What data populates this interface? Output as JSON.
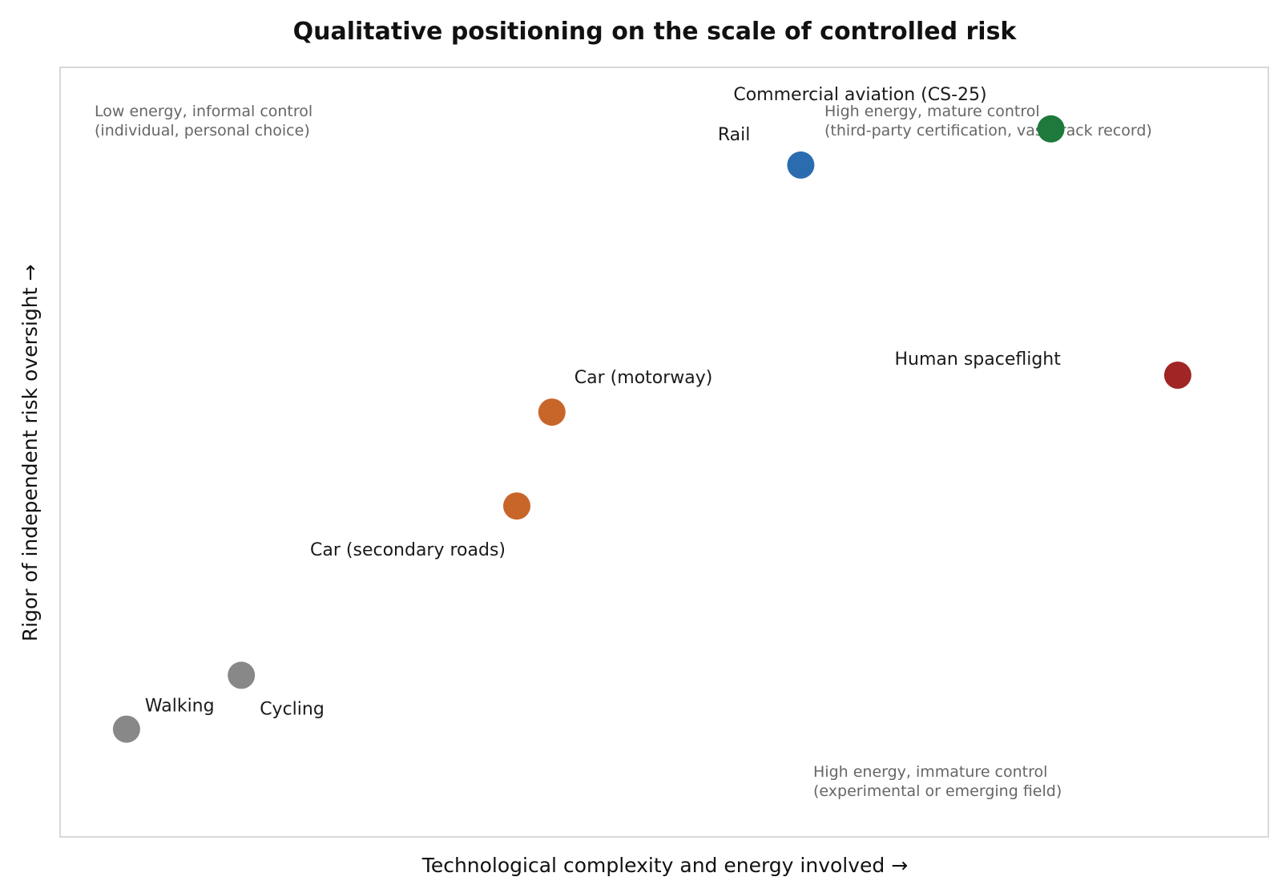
{
  "chart_data": {
    "type": "scatter",
    "title": "Qualitative positioning on the scale of controlled risk",
    "xlabel": "Technological complexity and energy involved  →",
    "ylabel": "Rigor of independent risk oversight  →",
    "xlim": [
      0,
      10
    ],
    "ylim": [
      0,
      10
    ],
    "grid": false,
    "points": [
      {
        "label": "Walking",
        "x": 0.55,
        "y": 1.4,
        "color": "#888888"
      },
      {
        "label": "Cycling",
        "x": 1.5,
        "y": 2.1,
        "color": "#888888"
      },
      {
        "label": "Car (secondary roads)",
        "x": 3.78,
        "y": 4.3,
        "color": "#c8662a"
      },
      {
        "label": "Car (motorway)",
        "x": 4.07,
        "y": 5.52,
        "color": "#c8662a"
      },
      {
        "label": "Rail",
        "x": 6.13,
        "y": 8.73,
        "color": "#2b6cb0"
      },
      {
        "label": "Commercial aviation (CS-25)",
        "x": 8.2,
        "y": 9.2,
        "color": "#1e7a3c"
      },
      {
        "label": "Human spaceflight",
        "x": 9.25,
        "y": 6.0,
        "color": "#a12525"
      }
    ],
    "annotations": [
      {
        "lines": [
          "Low energy, informal control",
          "(individual, personal choice)"
        ]
      },
      {
        "lines": [
          "High energy, mature control",
          "(third-party certification, vast track record)"
        ]
      },
      {
        "lines": [
          "High energy, immature control",
          "(experimental or emerging field)"
        ]
      }
    ]
  }
}
